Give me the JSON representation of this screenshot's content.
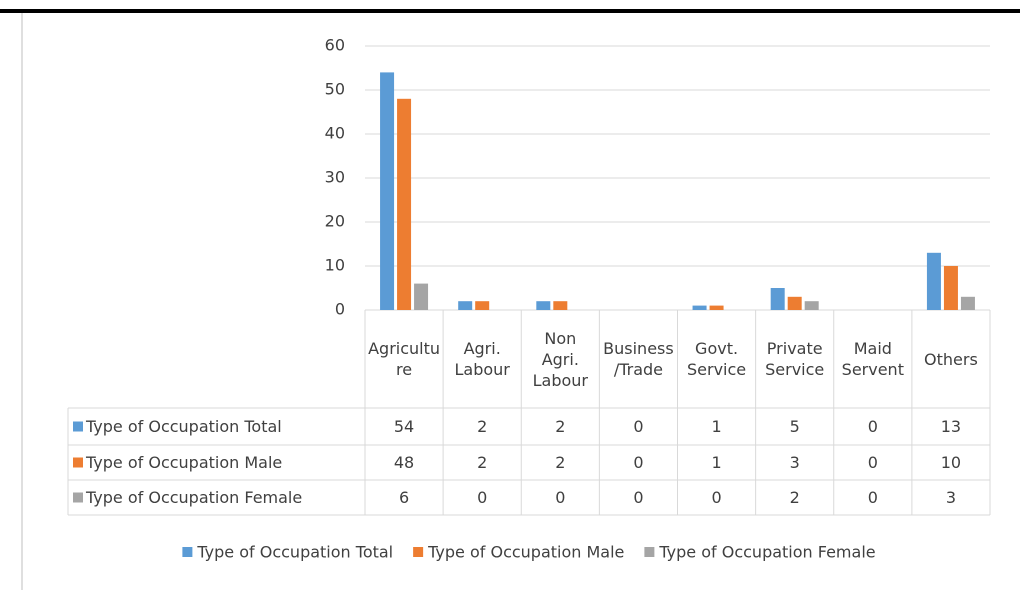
{
  "chart_data": {
    "type": "bar",
    "categories": [
      "Agriculture",
      "Agri. Labour",
      "Non Agri. Labour",
      "Business/Trade",
      "Govt. Service",
      "Private Service",
      "Maid Servent",
      "Others"
    ],
    "series": [
      {
        "name": "Type of Occupation Total",
        "color": "#5b9bd5",
        "values": [
          54,
          2,
          2,
          0,
          1,
          5,
          0,
          13
        ]
      },
      {
        "name": "Type of Occupation Male",
        "color": "#ed7d31",
        "values": [
          48,
          2,
          2,
          0,
          1,
          3,
          0,
          10
        ]
      },
      {
        "name": "Type of Occupation Female",
        "color": "#a5a5a5",
        "values": [
          6,
          0,
          0,
          0,
          0,
          2,
          0,
          3
        ]
      }
    ],
    "ylim": [
      0,
      60
    ],
    "yticks": [
      0,
      10,
      20,
      30,
      40,
      50,
      60
    ],
    "grid": true,
    "legend": "bottom"
  }
}
